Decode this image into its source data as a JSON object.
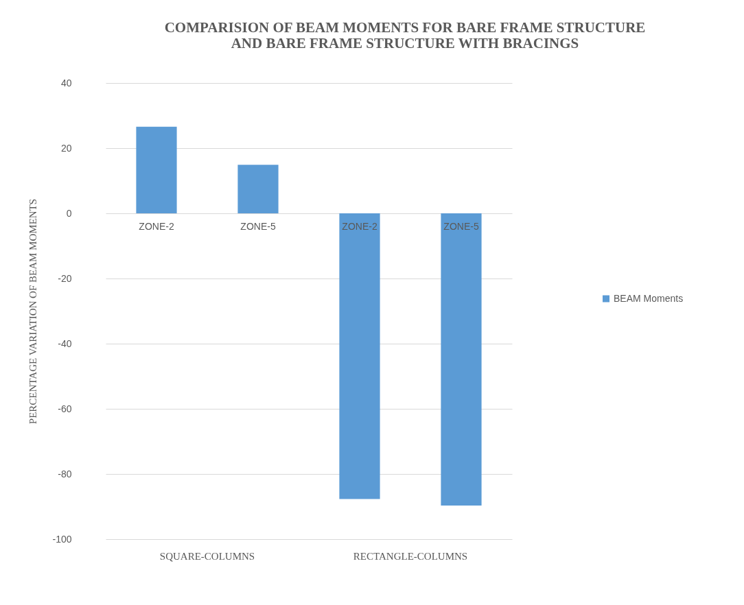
{
  "chart_data": {
    "type": "bar",
    "title": "COMPARISION  OF BEAM  MOMENTS FOR BARE FRAME STRUCTURE\nAND BARE FRAME STRUCTURE WITH BRACINGS",
    "ylabel": "PERCENTAGE VARIATION OF BEAM MOMENTS",
    "categories": [
      "ZONE-2",
      "ZONE-5",
      "ZONE-2",
      "ZONE-5"
    ],
    "series": [
      {
        "name": "BEAM Moments",
        "color": "#5b9bd5",
        "values": [
          26.6,
          14.9,
          -87.7,
          -89.7
        ]
      }
    ],
    "annotations": [
      "SQUARE-COLUMNS",
      "RECTANGLE-COLUMNS"
    ],
    "ylim": [
      -100,
      40
    ],
    "yticks": [
      -100,
      -80,
      -60,
      -40,
      -20,
      0,
      20,
      40
    ],
    "grid": "y",
    "legend": "right"
  }
}
